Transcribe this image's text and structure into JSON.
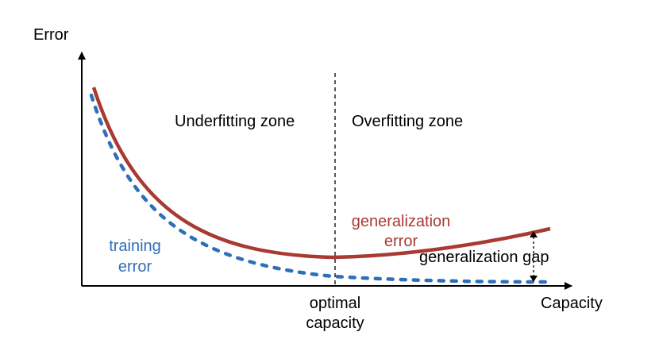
{
  "axes": {
    "y_label": "Error",
    "x_label": "Capacity"
  },
  "zones": {
    "left": "Underfitting zone",
    "right": "Overfitting zone"
  },
  "optimal": {
    "line1": "optimal",
    "line2": "capacity"
  },
  "training": {
    "line1": "training",
    "line2": "error",
    "color": "#2f6fb8"
  },
  "generalization": {
    "line1": "generalization",
    "line2": "error",
    "color": "#a83a32"
  },
  "gap_label": "generalization gap"
}
